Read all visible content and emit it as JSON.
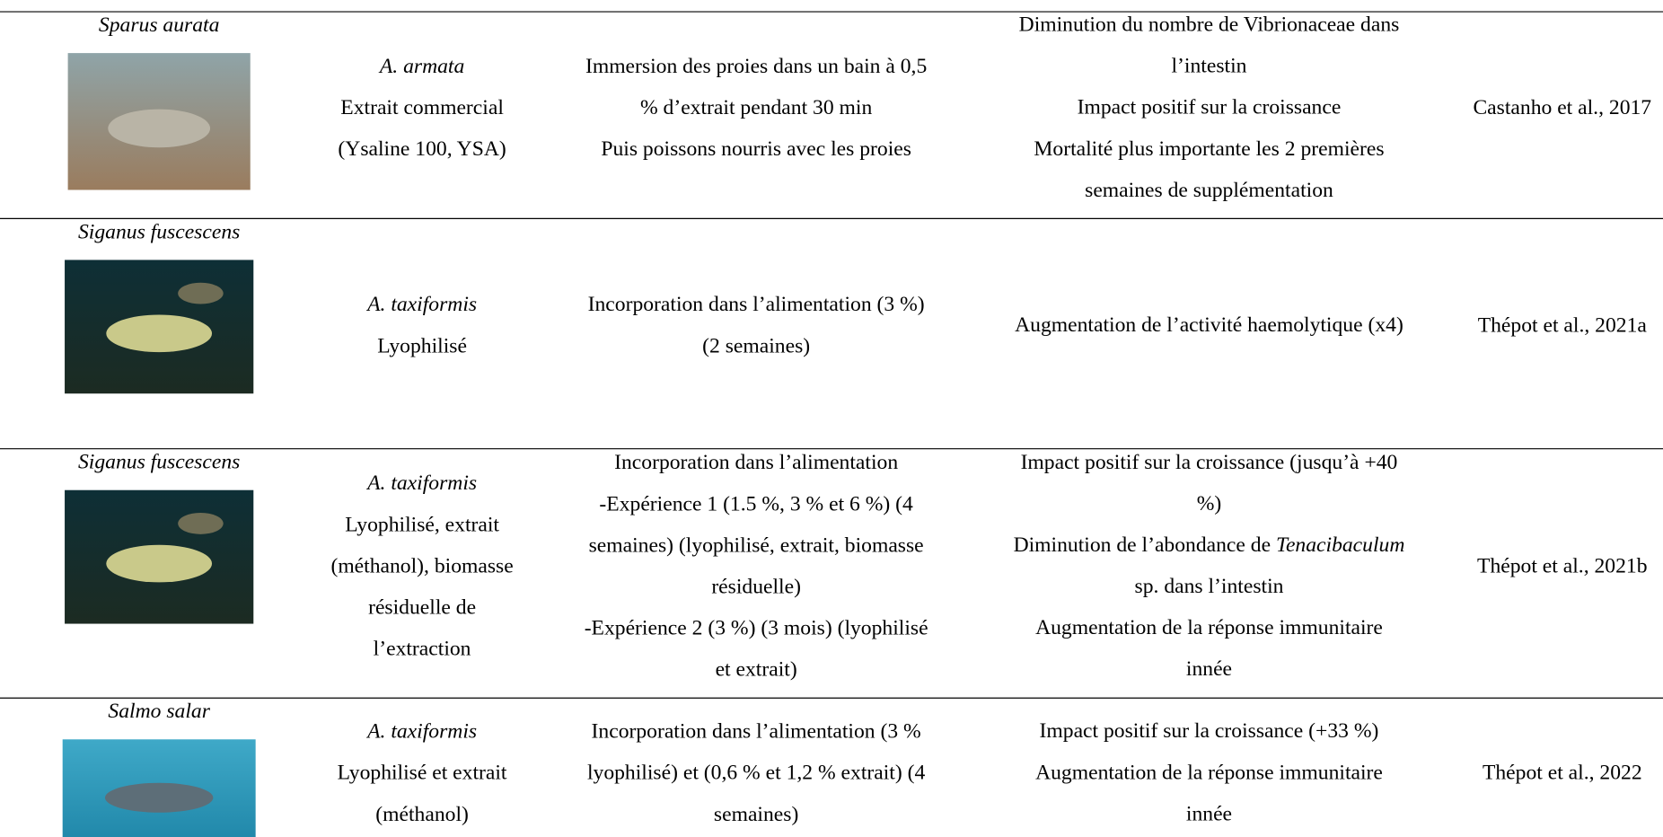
{
  "table": {
    "rows": [
      {
        "species": "Sparus aurata",
        "alga": "A. armata",
        "form": [
          "Extrait commercial",
          "(Ysaline 100, YSA)"
        ],
        "method": [
          "Immersion des proies dans un bain à 0,5",
          "% d’extrait pendant 30 min",
          "Puis poissons nourris avec les proies"
        ],
        "effects": [
          [
            "Diminution du nombre de Vibrionaceae dans"
          ],
          [
            "l’intestin"
          ],
          [
            "Impact positif sur la croissance"
          ],
          [
            "Mortalité plus importante les 2 premières"
          ],
          [
            "semaines de supplémentation"
          ]
        ],
        "reference": "Castanho et al., 2017"
      },
      {
        "species": "Siganus fuscescens",
        "alga": "A. taxiformis",
        "form": [
          "Lyophilisé"
        ],
        "method": [
          "Incorporation dans l’alimentation (3 %)",
          "(2 semaines)"
        ],
        "effects": [
          [
            "Augmentation de l’activité haemolytique (x4)"
          ]
        ],
        "reference": "Thépot et al., 2021a"
      },
      {
        "species": "Siganus fuscescens",
        "alga": "A. taxiformis",
        "form": [
          "Lyophilisé, extrait",
          "(méthanol), biomasse",
          "résiduelle de",
          "l’extraction"
        ],
        "method": [
          "Incorporation dans l’alimentation",
          "-Expérience 1 (1.5 %, 3 % et 6 %) (4",
          "semaines) (lyophilisé, extrait, biomasse",
          "résiduelle)",
          "-Expérience 2 (3 %) (3 mois) (lyophilisé",
          "et extrait)"
        ],
        "effects": [
          [
            "Impact positif sur la croissance (jusqu’à +40"
          ],
          [
            "%)"
          ],
          [
            "Diminution de l’abondance de ",
            "Tenacibaculum"
          ],
          [
            "sp. dans l’intestin"
          ],
          [
            "Augmentation de la réponse immunitaire"
          ],
          [
            "innée"
          ]
        ],
        "reference": "Thépot et al., 2021b"
      },
      {
        "species": "Salmo salar",
        "alga": "A. taxiformis",
        "form": [
          "Lyophilisé et extrait",
          "(méthanol)"
        ],
        "method": [
          "Incorporation dans l’alimentation (3 %",
          "lyophilisé) et (0,6 % et 1,2 % extrait) (4",
          "semaines)"
        ],
        "effects": [
          [
            "Impact positif sur la croissance (+33 %)"
          ],
          [
            "Augmentation de la réponse immunitaire"
          ],
          [
            "innée"
          ]
        ],
        "reference": "Thépot et al., 2022"
      }
    ]
  }
}
